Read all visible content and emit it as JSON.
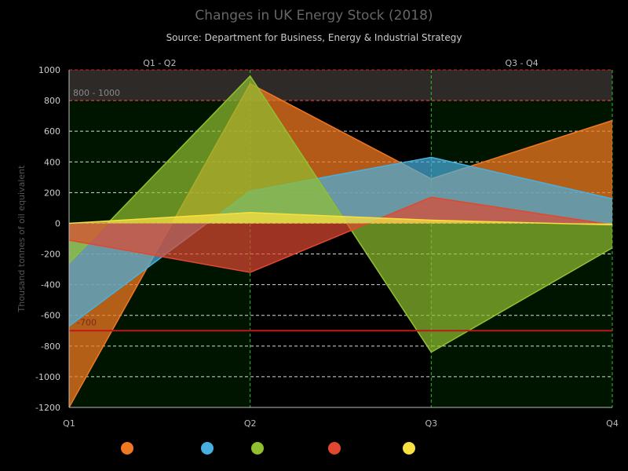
{
  "title": "Changes in UK Energy Stock (2018)",
  "subtitle": "Source: Department for Business, Energy & Industrial Strategy",
  "colors": {
    "background": "#000000",
    "plot_band_green": "#001500",
    "plot_band_top": "#2e2a28",
    "band_line_red": "#e02020",
    "vertical_grid_green": "#30d030",
    "horizontal_grid": "#ffffff"
  },
  "chart_data": {
    "type": "area",
    "title": "Changes in UK Energy Stock (2018)",
    "subtitle": "Source: Department for Business, Energy & Industrial Strategy",
    "categories": [
      "Q1",
      "Q2",
      "Q3",
      "Q4"
    ],
    "ylabel": "Thousand tonnes of oil equivalent",
    "ylim": [
      -1200,
      1000
    ],
    "yticks": [
      1000,
      800,
      600,
      400,
      200,
      0,
      -200,
      -400,
      -600,
      -800,
      -1000,
      -1200
    ],
    "grid": true,
    "legend_position": "bottom",
    "x_plot_bands": [
      {
        "label": "Q1 - Q2",
        "from": "Q1",
        "to": "Q2"
      },
      {
        "label": "Q3 - Q4",
        "from": "Q3",
        "to": "Q4"
      }
    ],
    "y_plot_bands": [
      {
        "label": "800 - 1000",
        "from": 800,
        "to": 1000
      }
    ],
    "y_plot_lines": [
      {
        "value": -700,
        "label": "-700"
      }
    ],
    "series": [
      {
        "values": [
          -1200,
          910,
          290,
          670
        ],
        "color": "#f07820",
        "opacity": 0.75
      },
      {
        "values": [
          -670,
          210,
          430,
          160
        ],
        "color": "#48b0e0",
        "opacity": 0.7
      },
      {
        "values": [
          -260,
          960,
          -840,
          -160
        ],
        "color": "#90c030",
        "opacity": 0.7
      },
      {
        "values": [
          -110,
          -320,
          170,
          -10
        ],
        "color": "#e04830",
        "opacity": 0.7
      },
      {
        "values": [
          0,
          70,
          20,
          -10
        ],
        "color": "#f8e040",
        "opacity": 0.75
      }
    ]
  }
}
